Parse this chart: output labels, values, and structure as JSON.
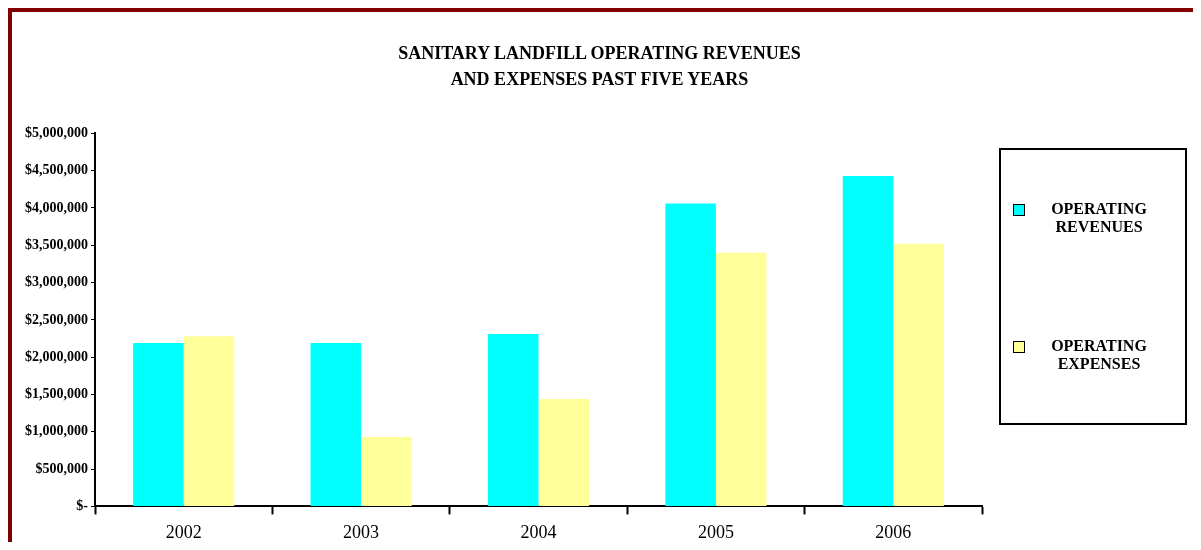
{
  "chart_data": {
    "type": "bar",
    "title": "SANITARY LANDFILL OPERATING REVENUES\nAND EXPENSES PAST FIVE YEARS",
    "categories": [
      "2002",
      "2003",
      "2004",
      "2005",
      "2006"
    ],
    "series": [
      {
        "name": "OPERATING REVENUES",
        "color": "#00ffff",
        "values": [
          2190000,
          2190000,
          2310000,
          4060000,
          4430000
        ]
      },
      {
        "name": "OPERATING EXPENSES",
        "color": "#ffff99",
        "values": [
          2280000,
          930000,
          1440000,
          3400000,
          3520000
        ]
      }
    ],
    "ylim": [
      0,
      5000000
    ],
    "yticks": [
      {
        "value": 0,
        "label": "$-"
      },
      {
        "value": 500000,
        "label": "$500,000"
      },
      {
        "value": 1000000,
        "label": "$1,000,000"
      },
      {
        "value": 1500000,
        "label": "$1,500,000"
      },
      {
        "value": 2000000,
        "label": "$2,000,000"
      },
      {
        "value": 2500000,
        "label": "$2,500,000"
      },
      {
        "value": 3000000,
        "label": "$3,000,000"
      },
      {
        "value": 3500000,
        "label": "$3,500,000"
      },
      {
        "value": 4000000,
        "label": "$4,000,000"
      },
      {
        "value": 4500000,
        "label": "$4,500,000"
      },
      {
        "value": 5000000,
        "label": "$5,000,000"
      }
    ],
    "grid": false,
    "legend": "right"
  }
}
